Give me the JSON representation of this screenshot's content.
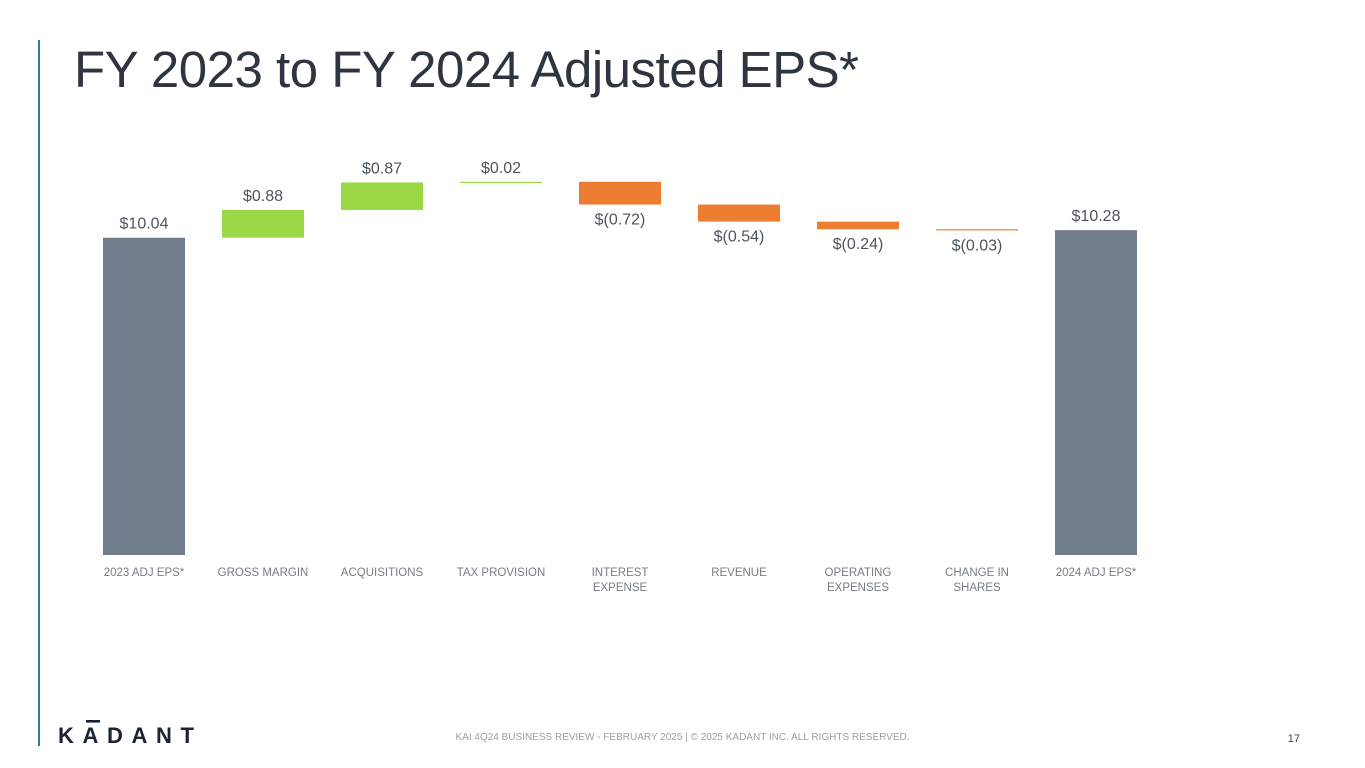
{
  "title": "FY 2023 to FY 2024 Adjusted EPS*",
  "chart_data": {
    "type": "bar",
    "subtype": "waterfall",
    "title": "FY 2023 to FY 2024 Adjusted EPS*",
    "categories": [
      [
        "2023 ADJ EPS*"
      ],
      [
        "GROSS MARGIN"
      ],
      [
        "ACQUISITIONS"
      ],
      [
        "TAX PROVISION"
      ],
      [
        "INTEREST",
        "EXPENSE"
      ],
      [
        "REVENUE"
      ],
      [
        "OPERATING",
        "EXPENSES"
      ],
      [
        "CHANGE IN",
        "SHARES"
      ],
      [
        "2024 ADJ EPS*"
      ]
    ],
    "values": [
      10.04,
      0.88,
      0.87,
      0.02,
      -0.72,
      -0.54,
      -0.24,
      -0.03,
      10.28
    ],
    "kinds": [
      "total",
      "delta",
      "delta",
      "delta",
      "delta",
      "delta",
      "delta",
      "delta",
      "total"
    ],
    "data_labels": [
      "$10.04",
      "$0.88",
      "$0.87",
      "$0.02",
      "$(0.72)",
      "$(0.54)",
      "$(0.24)",
      "$(0.03)",
      "$10.28"
    ],
    "ylim": [
      0,
      12
    ],
    "xlabel": "",
    "ylabel": "",
    "grid": false,
    "legend": "none",
    "colors": {
      "total": "#717d8c",
      "increase": "#9ad945",
      "decrease": "#ed7d31",
      "label": "#4d5560",
      "category": "#767d86"
    }
  },
  "footer": {
    "logo_text": "KADANT",
    "text": "KAI 4Q24 BUSINESS REVIEW - FEBRUARY 2025  |  © 2025 KADANT INC. ALL RIGHTS RESERVED.",
    "page_number": "17"
  }
}
